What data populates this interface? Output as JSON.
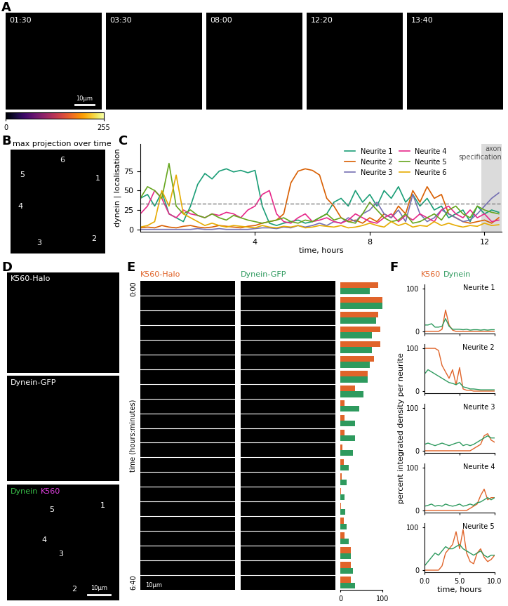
{
  "chart_data": [
    {
      "type": "image_series",
      "label": "A",
      "frames": [
        "01:30",
        "03:30",
        "08:00",
        "12:20",
        "13:40"
      ],
      "scale_bar": "10μm",
      "colorbar": {
        "range": [
          0,
          255
        ],
        "ticks": [
          0,
          255
        ]
      }
    },
    {
      "type": "image",
      "label": "B",
      "title": "max projection over time",
      "annotations": [
        "1",
        "2",
        "3",
        "4",
        "5",
        "6"
      ]
    },
    {
      "type": "line",
      "label": "C",
      "xlabel": "time, hours",
      "ylabel": "dynein | localisation",
      "x": [
        0,
        0.25,
        0.5,
        0.75,
        1,
        1.25,
        1.5,
        1.75,
        2,
        2.25,
        2.5,
        2.75,
        3,
        3.25,
        3.5,
        3.75,
        4,
        4.25,
        4.5,
        4.75,
        5,
        5.25,
        5.5,
        5.75,
        6,
        6.25,
        6.5,
        6.75,
        7,
        7.25,
        7.5,
        7.75,
        8,
        8.25,
        8.5,
        8.75,
        9,
        9.25,
        9.5,
        9.75,
        10,
        10.25,
        10.5,
        10.75,
        11,
        11.25,
        11.5,
        11.75,
        12,
        12.25,
        12.5
      ],
      "xlim": [
        0,
        12.6
      ],
      "xticks": [
        4,
        8,
        12
      ],
      "ylim": [
        -3,
        110
      ],
      "yticks": [
        0,
        25,
        50,
        75
      ],
      "threshold": 33,
      "highlight": {
        "range": [
          11.9,
          12.6
        ],
        "label": "axon specification"
      },
      "legend": "upper right",
      "series": [
        {
          "name": "Neurite 1",
          "color": "#1b9e77",
          "values": [
            40,
            45,
            30,
            48,
            20,
            15,
            10,
            30,
            58,
            72,
            65,
            75,
            78,
            74,
            76,
            73,
            76,
            30,
            8,
            5,
            8,
            10,
            12,
            8,
            10,
            15,
            20,
            35,
            40,
            30,
            50,
            35,
            45,
            30,
            50,
            40,
            55,
            35,
            45,
            30,
            40,
            25,
            30,
            15,
            20,
            25,
            10,
            30,
            20,
            25,
            22
          ]
        },
        {
          "name": "Neurite 2",
          "color": "#d95f02",
          "values": [
            2,
            3,
            2,
            5,
            3,
            2,
            4,
            5,
            3,
            2,
            3,
            5,
            4,
            3,
            2,
            4,
            5,
            8,
            10,
            12,
            20,
            60,
            75,
            78,
            76,
            70,
            40,
            30,
            15,
            10,
            12,
            8,
            15,
            10,
            20,
            15,
            30,
            20,
            50,
            35,
            55,
            40,
            45,
            20,
            15,
            10,
            8,
            10,
            12,
            8,
            15
          ]
        },
        {
          "name": "Neurite 3",
          "color": "#7570b3",
          "values": [
            0,
            0,
            0,
            0,
            0,
            0,
            0,
            0,
            1,
            0,
            0,
            1,
            0,
            0,
            0,
            0,
            1,
            2,
            2,
            1,
            3,
            2,
            5,
            3,
            5,
            8,
            5,
            10,
            8,
            15,
            10,
            20,
            25,
            35,
            20,
            15,
            25,
            10,
            45,
            20,
            10,
            15,
            25,
            20,
            15,
            10,
            12,
            20,
            30,
            40,
            47
          ]
        },
        {
          "name": "Neurite 4",
          "color": "#e7298a",
          "values": [
            20,
            30,
            50,
            40,
            20,
            15,
            25,
            20,
            18,
            15,
            20,
            18,
            22,
            20,
            15,
            25,
            30,
            45,
            50,
            20,
            10,
            8,
            15,
            20,
            10,
            12,
            15,
            10,
            8,
            12,
            20,
            15,
            10,
            8,
            15,
            20,
            10,
            18,
            12,
            20,
            15,
            10,
            25,
            30,
            20,
            15,
            25,
            15,
            20,
            10,
            12
          ]
        },
        {
          "name": "Neurite 5",
          "color": "#66a61e",
          "values": [
            40,
            55,
            50,
            40,
            85,
            30,
            20,
            25,
            18,
            15,
            20,
            15,
            12,
            18,
            15,
            12,
            10,
            8,
            10,
            12,
            15,
            10,
            8,
            12,
            10,
            15,
            20,
            12,
            15,
            10,
            8,
            20,
            35,
            25,
            15,
            10,
            12,
            20,
            8,
            10,
            15,
            20,
            12,
            25,
            30,
            20,
            15,
            30,
            25,
            22,
            20
          ]
        },
        {
          "name": "Neurite 6",
          "color": "#e6ab02",
          "values": [
            3,
            5,
            10,
            50,
            30,
            70,
            20,
            15,
            10,
            5,
            8,
            5,
            3,
            5,
            4,
            3,
            2,
            5,
            3,
            2,
            4,
            3,
            5,
            2,
            3,
            5,
            4,
            3,
            5,
            2,
            3,
            5,
            8,
            5,
            3,
            10,
            5,
            8,
            3,
            5,
            4,
            10,
            5,
            8,
            5,
            3,
            5,
            4,
            8,
            5,
            6
          ]
        }
      ]
    },
    {
      "type": "image_stack",
      "label": "D",
      "panels": [
        {
          "title": "K560-Halo"
        },
        {
          "title": "Dynein-GFP"
        },
        {
          "titles": [
            {
              "name": "Dynein",
              "color": "#39c24a"
            },
            {
              "name": "K560",
              "color": "#e040e0"
            }
          ],
          "annotations": [
            "1",
            "5",
            "4",
            "3",
            "2"
          ],
          "scale_bar": "10μm"
        }
      ]
    },
    {
      "type": "kymograph",
      "label": "E",
      "columns": [
        {
          "title": "K560-Halo",
          "color": "#e0642a"
        },
        {
          "title": "Dynein-GFP",
          "color": "#2e9a5e"
        }
      ],
      "ylabel": "time (hours:minutes)",
      "time_labels": [
        "0:00",
        "6:40"
      ],
      "scale_bar": "10μm"
    },
    {
      "type": "bar",
      "orientation": "horizontal",
      "tick_labels": "x",
      "categories": [
        null,
        null,
        null,
        null,
        null,
        null,
        null,
        null,
        null,
        null,
        null,
        null,
        null,
        null,
        null,
        null,
        null,
        null,
        null,
        null,
        null
      ],
      "xlim": [
        0,
        100
      ],
      "xticks": [
        0,
        100
      ],
      "series": [
        {
          "color": "#e0642a",
          "values": [
            90,
            100,
            90,
            95,
            95,
            80,
            65,
            35,
            10,
            10,
            10,
            5,
            8,
            3,
            2,
            2,
            8,
            10,
            25,
            25,
            25
          ]
        },
        {
          "color": "#2e9a5e",
          "values": [
            70,
            100,
            85,
            75,
            75,
            70,
            65,
            55,
            45,
            35,
            35,
            30,
            20,
            15,
            10,
            12,
            15,
            20,
            25,
            30,
            35
          ]
        }
      ]
    },
    {
      "type": "multi_line",
      "label": "F",
      "xlabel": "time, hours",
      "ylabel": "percent integrated density per neurite",
      "x": [
        0,
        0.5,
        1,
        1.5,
        2,
        2.5,
        3,
        3.5,
        4,
        4.5,
        5,
        5.5,
        6,
        6.5,
        7,
        7.5,
        8,
        8.5,
        9,
        9.5,
        10
      ],
      "xlim": [
        0,
        10
      ],
      "xticks": [
        {
          "value": 0,
          "label": "0.0"
        },
        {
          "value": 5,
          "label": "5.0"
        },
        {
          "value": 10,
          "label": "10.0"
        }
      ],
      "ylim": [
        -5,
        110
      ],
      "yticks": [
        0,
        100
      ],
      "series": [
        {
          "name": "K560",
          "color": "#e0642a"
        },
        {
          "name": "Dynein",
          "color": "#2e9a5e"
        }
      ],
      "panels": [
        {
          "title": "Neurite 1",
          "tick_labels": "y",
          "values": [
            [
              0,
              0,
              0,
              0,
              0,
              5,
              50,
              15,
              3,
              0,
              0,
              0,
              0,
              0,
              0,
              0,
              0,
              0,
              0,
              0,
              0
            ],
            [
              15,
              15,
              18,
              10,
              10,
              12,
              30,
              12,
              5,
              5,
              5,
              4,
              5,
              3,
              4,
              4,
              3,
              4,
              3,
              4,
              4
            ]
          ]
        },
        {
          "title": "Neurite 2",
          "tick_labels": "y",
          "values": [
            [
              100,
              100,
              100,
              100,
              95,
              60,
              45,
              30,
              50,
              15,
              55,
              5,
              2,
              2,
              0,
              0,
              0,
              0,
              0,
              0,
              0
            ],
            [
              40,
              50,
              45,
              40,
              35,
              30,
              25,
              20,
              18,
              15,
              20,
              10,
              8,
              5,
              5,
              4,
              3,
              3,
              3,
              3,
              3
            ]
          ]
        },
        {
          "title": "Neurite 3",
          "tick_labels": "y",
          "values": [
            [
              0,
              0,
              0,
              0,
              0,
              0,
              0,
              0,
              0,
              0,
              0,
              0,
              0,
              0,
              5,
              10,
              15,
              35,
              40,
              25,
              20
            ],
            [
              15,
              18,
              15,
              12,
              15,
              18,
              15,
              12,
              15,
              18,
              20,
              12,
              15,
              12,
              15,
              20,
              25,
              30,
              35,
              30,
              30
            ]
          ]
        },
        {
          "title": "Neurite 4",
          "tick_labels": "y",
          "values": [
            [
              0,
              0,
              0,
              0,
              0,
              0,
              0,
              0,
              0,
              0,
              0,
              0,
              0,
              5,
              10,
              15,
              35,
              50,
              25,
              30,
              30
            ],
            [
              10,
              12,
              15,
              10,
              12,
              10,
              15,
              12,
              10,
              12,
              15,
              10,
              12,
              15,
              12,
              18,
              20,
              25,
              30,
              25,
              30
            ]
          ]
        },
        {
          "title": "Neurite 5",
          "values": [
            [
              0,
              0,
              0,
              0,
              0,
              10,
              40,
              50,
              60,
              90,
              50,
              95,
              40,
              20,
              15,
              40,
              50,
              30,
              20,
              25,
              35
            ],
            [
              10,
              20,
              30,
              40,
              35,
              45,
              55,
              50,
              50,
              55,
              60,
              50,
              45,
              40,
              35,
              40,
              45,
              35,
              30,
              35,
              35
            ]
          ]
        }
      ]
    }
  ]
}
